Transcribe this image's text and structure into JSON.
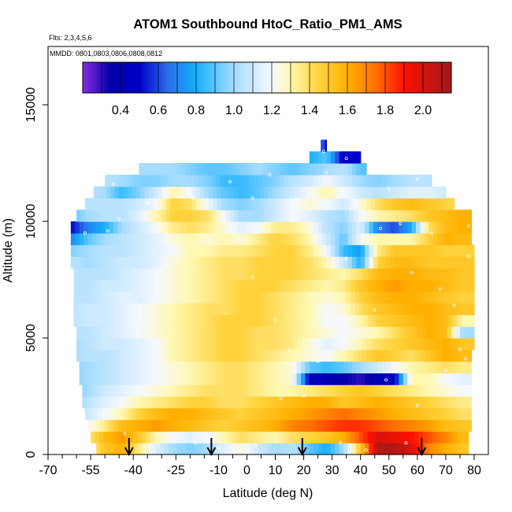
{
  "chart_data": {
    "type": "heatmap",
    "title": "ATOM1 Southbound HtoC_Ratio_PM1_AMS",
    "subtitle_flights": "Flts: 2,3,4,5,6",
    "subtitle_dates": "MMDD: 0801,0803,0806,0808,0812",
    "xlabel": "Latitude (deg N)",
    "ylabel": "Altitude (m)",
    "xlim": [
      -70,
      85
    ],
    "ylim": [
      0,
      17500
    ],
    "x_ticks": [
      -70,
      -55,
      -40,
      -25,
      -10,
      0,
      10,
      20,
      30,
      40,
      50,
      60,
      70,
      80
    ],
    "x_minor_ticks": [
      -65,
      -60,
      -50,
      -45,
      -35,
      -30,
      -20,
      -15,
      -5,
      5,
      15,
      25,
      35,
      45,
      55,
      65,
      75
    ],
    "y_ticks": [
      0,
      5000,
      10000,
      15000
    ],
    "colorbar": {
      "range": [
        0.2,
        2.15
      ],
      "ticks": [
        0.4,
        0.6,
        0.8,
        1.0,
        1.2,
        1.4,
        1.6,
        1.8,
        2.0
      ],
      "tick_labels": [
        "0.4",
        "0.6",
        "0.8",
        "1.0",
        "1.2",
        "1.4",
        "1.6",
        "1.8",
        "2.0"
      ],
      "stops": [
        {
          "v": 0.2,
          "c": "#8a2be2"
        },
        {
          "v": 0.35,
          "c": "#0000a8"
        },
        {
          "v": 0.5,
          "c": "#0000cc"
        },
        {
          "v": 0.65,
          "c": "#2a6ee8"
        },
        {
          "v": 0.8,
          "c": "#14b0ff"
        },
        {
          "v": 1.0,
          "c": "#a6dcff"
        },
        {
          "v": 1.2,
          "c": "#f5f8ff"
        },
        {
          "v": 1.3,
          "c": "#fff8b0"
        },
        {
          "v": 1.45,
          "c": "#ffd23c"
        },
        {
          "v": 1.6,
          "c": "#ffb000"
        },
        {
          "v": 1.75,
          "c": "#ff7000"
        },
        {
          "v": 1.9,
          "c": "#ff1000"
        },
        {
          "v": 2.15,
          "c": "#9e1a1a"
        }
      ]
    },
    "alt_bins": [
      0,
      500,
      1000,
      1500,
      2000,
      2500,
      3000,
      3500,
      4000,
      4500,
      5000,
      5500,
      6000,
      6500,
      7000,
      7500,
      8000,
      8500,
      9000,
      9500,
      10000,
      10500,
      11000,
      11500,
      12000,
      12500,
      13000
    ],
    "lat_bins": [
      -62,
      -56,
      -50,
      -44,
      -38,
      -32,
      -26,
      -20,
      -14,
      -8,
      -2,
      4,
      10,
      16,
      22,
      28,
      34,
      40,
      46,
      52,
      58,
      64,
      70,
      76
    ],
    "lat_coverage": [
      [
        -53,
        78
      ],
      [
        -55,
        78
      ],
      [
        -56,
        79
      ],
      [
        -57,
        79
      ],
      [
        -58,
        79
      ],
      [
        -58,
        79
      ],
      [
        -59,
        79
      ],
      [
        -59,
        79
      ],
      [
        -60,
        79
      ],
      [
        -60,
        80
      ],
      [
        -60,
        80
      ],
      [
        -61,
        80
      ],
      [
        -61,
        80
      ],
      [
        -61,
        80
      ],
      [
        -61,
        80
      ],
      [
        -61,
        80
      ],
      [
        -62,
        80
      ],
      [
        -62,
        80
      ],
      [
        -62,
        79
      ],
      [
        -62,
        79
      ],
      [
        -60,
        79
      ],
      [
        -57,
        73
      ],
      [
        -54,
        70
      ],
      [
        -50,
        65
      ],
      [
        -38,
        42
      ],
      [
        22,
        40
      ],
      [
        26,
        28
      ]
    ],
    "values": [
      [
        1.1,
        1.3,
        1.5,
        1.6,
        1.35,
        1.15,
        1.0,
        0.95,
        1.0,
        1.15,
        1.25,
        1.1,
        1.0,
        1.05,
        0.9,
        0.8,
        1.0,
        1.5,
        2.1,
        2.1,
        2.0,
        1.7,
        1.6,
        1.5
      ],
      [
        1.05,
        1.35,
        1.55,
        1.65,
        1.5,
        1.3,
        1.2,
        1.15,
        1.2,
        1.3,
        1.4,
        1.35,
        1.3,
        1.4,
        1.45,
        1.5,
        1.6,
        1.8,
        2.0,
        1.95,
        1.9,
        1.8,
        1.7,
        1.55
      ],
      [
        1.0,
        1.2,
        1.35,
        1.55,
        1.6,
        1.65,
        1.6,
        1.55,
        1.5,
        1.45,
        1.5,
        1.55,
        1.6,
        1.7,
        1.75,
        1.8,
        1.85,
        1.85,
        1.8,
        1.75,
        1.7,
        1.65,
        1.55,
        1.5
      ],
      [
        1.0,
        1.1,
        1.2,
        1.3,
        1.45,
        1.55,
        1.6,
        1.6,
        1.55,
        1.5,
        1.45,
        1.5,
        1.55,
        1.6,
        1.65,
        1.7,
        1.75,
        1.7,
        1.65,
        1.6,
        1.55,
        1.5,
        1.45,
        1.4
      ],
      [
        0.95,
        1.05,
        1.15,
        1.2,
        1.3,
        1.35,
        1.4,
        1.45,
        1.45,
        1.4,
        1.4,
        1.45,
        1.5,
        1.55,
        1.6,
        1.6,
        1.5,
        1.55,
        1.6,
        1.55,
        1.5,
        1.45,
        1.4,
        1.35
      ],
      [
        0.95,
        1.0,
        1.1,
        1.15,
        1.2,
        1.25,
        1.3,
        1.35,
        1.4,
        1.4,
        1.4,
        1.35,
        1.3,
        1.3,
        1.35,
        1.4,
        1.45,
        1.5,
        1.45,
        1.4,
        1.35,
        1.3,
        1.25,
        1.2
      ],
      [
        0.95,
        1.0,
        1.05,
        1.1,
        1.15,
        1.2,
        1.25,
        1.3,
        1.35,
        1.4,
        1.4,
        1.35,
        1.3,
        1.25,
        0.45,
        0.4,
        0.35,
        0.3,
        0.4,
        0.45,
        1.3,
        1.3,
        1.2,
        1.15
      ],
      [
        0.95,
        1.0,
        1.05,
        1.1,
        1.15,
        1.2,
        1.25,
        1.3,
        1.35,
        1.4,
        1.4,
        1.35,
        1.3,
        1.25,
        0.9,
        0.85,
        0.9,
        1.0,
        1.1,
        1.2,
        1.3,
        1.35,
        1.4,
        1.35
      ],
      [
        1.0,
        1.05,
        1.05,
        1.1,
        1.15,
        1.2,
        1.3,
        1.35,
        1.4,
        1.45,
        1.45,
        1.4,
        1.35,
        1.3,
        1.25,
        1.2,
        1.3,
        1.4,
        1.5,
        1.45,
        1.4,
        1.5,
        1.6,
        1.55
      ],
      [
        1.0,
        1.05,
        1.1,
        1.1,
        1.15,
        1.2,
        1.3,
        1.35,
        1.4,
        1.45,
        1.45,
        1.4,
        1.4,
        1.35,
        1.25,
        1.15,
        1.2,
        1.3,
        1.4,
        1.45,
        1.5,
        1.55,
        1.6,
        1.5
      ],
      [
        1.05,
        1.05,
        1.1,
        1.15,
        1.2,
        1.25,
        1.3,
        1.35,
        1.4,
        1.45,
        1.45,
        1.4,
        1.4,
        1.35,
        1.3,
        1.25,
        1.2,
        1.25,
        1.3,
        1.4,
        1.5,
        1.6,
        1.55,
        1.0
      ],
      [
        1.05,
        1.1,
        1.1,
        1.15,
        1.2,
        1.25,
        1.3,
        1.35,
        1.4,
        1.45,
        1.45,
        1.45,
        1.4,
        1.35,
        1.3,
        1.2,
        1.2,
        1.3,
        1.45,
        1.5,
        1.55,
        1.6,
        1.55,
        1.3
      ],
      [
        1.05,
        1.1,
        1.1,
        1.15,
        1.2,
        1.25,
        1.3,
        1.35,
        1.4,
        1.4,
        1.45,
        1.45,
        1.4,
        1.35,
        1.3,
        1.2,
        1.25,
        1.4,
        1.5,
        1.55,
        1.6,
        1.6,
        1.55,
        1.5
      ],
      [
        1.05,
        1.05,
        1.1,
        1.15,
        1.15,
        1.2,
        1.25,
        1.3,
        1.35,
        1.4,
        1.45,
        1.45,
        1.4,
        1.35,
        1.3,
        1.25,
        1.3,
        1.45,
        1.55,
        1.6,
        1.6,
        1.55,
        1.5,
        1.45
      ],
      [
        1.05,
        1.05,
        1.1,
        1.1,
        1.15,
        1.2,
        1.25,
        1.3,
        1.35,
        1.4,
        1.45,
        1.45,
        1.45,
        1.4,
        1.35,
        1.3,
        1.35,
        1.5,
        1.6,
        1.65,
        1.6,
        1.6,
        1.55,
        1.5
      ],
      [
        1.05,
        1.05,
        1.05,
        1.1,
        1.15,
        1.2,
        1.25,
        1.3,
        1.35,
        1.4,
        1.4,
        1.45,
        1.45,
        1.45,
        1.4,
        1.35,
        1.3,
        1.4,
        1.55,
        1.6,
        1.6,
        1.55,
        1.55,
        1.5
      ],
      [
        1.05,
        1.0,
        1.05,
        1.1,
        1.1,
        1.15,
        1.25,
        1.3,
        1.35,
        1.4,
        1.4,
        1.45,
        1.45,
        1.45,
        1.4,
        1.3,
        1.1,
        0.8,
        1.45,
        1.55,
        1.55,
        1.5,
        1.5,
        1.5
      ],
      [
        0.95,
        1.0,
        1.05,
        1.05,
        1.1,
        1.15,
        1.2,
        1.3,
        1.3,
        1.35,
        1.35,
        1.4,
        1.45,
        1.45,
        1.35,
        1.2,
        0.85,
        0.75,
        1.35,
        1.5,
        1.5,
        1.5,
        1.45,
        1.45
      ],
      [
        0.7,
        0.9,
        1.0,
        1.05,
        1.1,
        1.15,
        1.25,
        1.3,
        1.25,
        1.3,
        1.25,
        1.35,
        1.45,
        1.4,
        1.3,
        1.1,
        0.9,
        1.2,
        1.3,
        1.3,
        1.3,
        1.45,
        1.6,
        1.55
      ],
      [
        0.5,
        0.7,
        0.8,
        1.0,
        1.1,
        1.2,
        1.35,
        1.4,
        1.35,
        1.25,
        1.15,
        1.2,
        1.35,
        1.35,
        1.25,
        1.05,
        0.95,
        1.15,
        0.7,
        0.6,
        0.8,
        1.4,
        1.55,
        1.6
      ],
      [
        0.9,
        1.0,
        1.05,
        1.05,
        1.15,
        1.3,
        1.45,
        1.45,
        1.4,
        1.2,
        1.0,
        1.0,
        1.1,
        1.2,
        1.15,
        1.05,
        1.0,
        1.2,
        1.3,
        1.35,
        1.4,
        1.5,
        1.55,
        1.6
      ],
      [
        1.05,
        1.05,
        1.05,
        1.05,
        1.1,
        1.2,
        1.45,
        1.4,
        1.2,
        1.0,
        0.95,
        1.0,
        1.1,
        1.2,
        1.25,
        1.2,
        1.1,
        1.25,
        1.4,
        1.5,
        1.55,
        1.5,
        1.45,
        1.4
      ],
      [
        1.1,
        1.05,
        1.0,
        0.85,
        0.95,
        1.1,
        1.3,
        1.2,
        1.0,
        0.9,
        0.85,
        0.9,
        1.0,
        1.1,
        1.2,
        1.3,
        1.2,
        1.1,
        1.05,
        1.1,
        1.15,
        1.15,
        1.1,
        1.0
      ],
      [
        1.15,
        1.1,
        1.05,
        1.0,
        0.95,
        0.95,
        1.0,
        1.0,
        0.95,
        0.85,
        0.85,
        0.9,
        0.95,
        1.05,
        1.1,
        1.2,
        1.1,
        1.0,
        0.95,
        1.0,
        1.05,
        1.05,
        1.0,
        0.95
      ],
      [
        1.1,
        1.1,
        1.05,
        1.05,
        1.0,
        1.0,
        1.0,
        0.95,
        0.9,
        0.9,
        0.95,
        1.0,
        0.95,
        0.9,
        0.95,
        1.0,
        1.05,
        0.9,
        0.85,
        1.0,
        1.0,
        1.0,
        1.0,
        1.0
      ],
      [
        1.0,
        1.0,
        1.0,
        1.0,
        1.0,
        1.0,
        1.0,
        1.0,
        1.0,
        1.0,
        1.0,
        0.9,
        0.85,
        0.8,
        0.8,
        0.9,
        0.45,
        0.5,
        0.9,
        1.0,
        1.0,
        1.0,
        1.0,
        1.0
      ],
      [
        1.0,
        1.0,
        1.0,
        1.0,
        1.0,
        1.0,
        1.0,
        1.0,
        1.0,
        1.0,
        1.0,
        1.0,
        1.0,
        1.0,
        1.0,
        0.5,
        0.5,
        1.0,
        1.0,
        1.0,
        1.0,
        1.0,
        1.0,
        1.0
      ]
    ],
    "marker_latitudes": [
      -41.5,
      -12.5,
      19.5,
      61.5
    ],
    "sample_points": [
      [
        -56,
        700
      ],
      [
        -43,
        900
      ],
      [
        -35,
        10800
      ],
      [
        -49,
        9600
      ],
      [
        -57,
        9500
      ],
      [
        -45,
        10100
      ],
      [
        -10,
        300
      ],
      [
        3,
        400
      ],
      [
        -2,
        200
      ],
      [
        -18,
        500
      ],
      [
        2,
        7600
      ],
      [
        8,
        12000
      ],
      [
        2,
        11000
      ],
      [
        10,
        5800
      ],
      [
        15,
        4500
      ],
      [
        12,
        2400
      ],
      [
        20,
        2500
      ],
      [
        33,
        500
      ],
      [
        42,
        200
      ],
      [
        56,
        500
      ],
      [
        60,
        2100
      ],
      [
        70,
        3600
      ],
      [
        75,
        4500
      ],
      [
        77,
        4100
      ],
      [
        73,
        6400
      ],
      [
        65,
        9500
      ],
      [
        68,
        7100
      ],
      [
        58,
        7800
      ],
      [
        45,
        6200
      ],
      [
        47,
        9700
      ],
      [
        54,
        9900
      ],
      [
        78,
        8500
      ],
      [
        50,
        11400
      ],
      [
        28,
        12100
      ],
      [
        27,
        13000
      ],
      [
        35,
        12700
      ],
      [
        35,
        8400
      ],
      [
        22,
        6900
      ],
      [
        -6,
        11700
      ],
      [
        -19,
        11000
      ],
      [
        31,
        4700
      ],
      [
        49,
        3200
      ],
      [
        60,
        11800
      ],
      [
        78,
        9800
      ],
      [
        -47,
        11600
      ],
      [
        25,
        4000
      ]
    ]
  }
}
